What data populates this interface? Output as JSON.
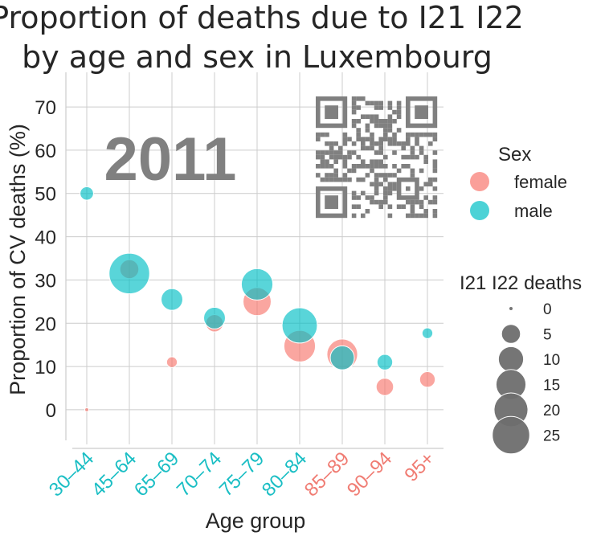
{
  "chart_data": {
    "type": "scatter",
    "title_lines": [
      "Proportion of deaths due to I21 I22",
      "by age and sex in Luxembourg"
    ],
    "xlabel": "Age group",
    "ylabel": "Proportion of CV deaths (%)",
    "year": "2011",
    "categories": [
      "30–44",
      "45–64",
      "65–69",
      "70–74",
      "75–79",
      "80–84",
      "85–89",
      "90–94",
      "95+"
    ],
    "category_label_colors": [
      "#1ABEC4",
      "#1ABEC4",
      "#1ABEC4",
      "#1ABEC4",
      "#1ABEC4",
      "#1ABEC4",
      "#F07C73",
      "#F07C73",
      "#F07C73"
    ],
    "ylim": [
      -8,
      78
    ],
    "yticks": [
      0,
      10,
      20,
      30,
      40,
      50,
      60,
      70
    ],
    "grid": true,
    "series": [
      {
        "name": "female",
        "color": "#F8766D",
        "points": [
          {
            "x": "30–44",
            "y": 0,
            "deaths": 0
          },
          {
            "x": "45–64",
            "y": 32.5,
            "deaths": 5
          },
          {
            "x": "65–69",
            "y": 11,
            "deaths": 1
          },
          {
            "x": "70–74",
            "y": 20,
            "deaths": 4
          },
          {
            "x": "75–79",
            "y": 25,
            "deaths": 13
          },
          {
            "x": "80–84",
            "y": 14.7,
            "deaths": 17
          },
          {
            "x": "85–89",
            "y": 12.8,
            "deaths": 16
          },
          {
            "x": "90–94",
            "y": 5.3,
            "deaths": 4
          },
          {
            "x": "95+",
            "y": 7,
            "deaths": 3
          }
        ]
      },
      {
        "name": "male",
        "color": "#00BFC4",
        "points": [
          {
            "x": "30–44",
            "y": 50,
            "deaths": 2
          },
          {
            "x": "45–64",
            "y": 31.5,
            "deaths": 30
          },
          {
            "x": "65–69",
            "y": 25.5,
            "deaths": 7
          },
          {
            "x": "70–74",
            "y": 21.2,
            "deaths": 7
          },
          {
            "x": "75–79",
            "y": 29,
            "deaths": 17
          },
          {
            "x": "80–84",
            "y": 19.5,
            "deaths": 22
          },
          {
            "x": "85–89",
            "y": 12,
            "deaths": 9
          },
          {
            "x": "90–94",
            "y": 11,
            "deaths": 3
          },
          {
            "x": "95+",
            "y": 17.7,
            "deaths": 1
          }
        ]
      }
    ],
    "legend": {
      "hue_title": "Sex",
      "hue_entries": [
        "female",
        "male"
      ],
      "size_title": "I21 I22 deaths",
      "size_entries": [
        0,
        5,
        10,
        15,
        20,
        25
      ],
      "size_marker_color": "#6E6E6E",
      "placement": "right"
    },
    "qr_code": {
      "color": "#808080"
    }
  }
}
